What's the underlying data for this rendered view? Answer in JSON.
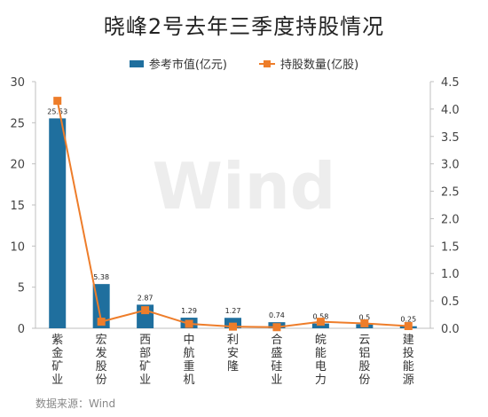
{
  "title": "晓峰2号去年三季度持股情况",
  "watermark": "Wind",
  "source": "数据来源：Wind",
  "colors": {
    "bar": "#1f6f9e",
    "line": "#ee7d2a",
    "axis": "#bfbfbf",
    "text": "#333333"
  },
  "chart_data": {
    "type": "bar",
    "categories": [
      "紫金矿业",
      "宏发股份",
      "西部矿业",
      "中航重机",
      "利安隆",
      "合盛硅业",
      "皖能电力",
      "云铝股份",
      "建投能源"
    ],
    "series": [
      {
        "name": "参考市值(亿元)",
        "type": "bar",
        "axis": "left",
        "values": [
          25.53,
          5.38,
          2.87,
          1.29,
          1.27,
          0.74,
          0.58,
          0.5,
          0.25
        ],
        "labels": [
          "25.53",
          "5.38",
          "2.87",
          "1.29",
          "1.27",
          "0.74",
          "0.58",
          "0.5",
          "0.25"
        ]
      },
      {
        "name": "持股数量(亿股)",
        "type": "line",
        "axis": "right",
        "values": [
          4.15,
          0.12,
          0.33,
          0.08,
          0.03,
          0.02,
          0.12,
          0.09,
          0.04
        ]
      }
    ],
    "y_left": {
      "min": 0,
      "max": 30,
      "ticks": [
        "0",
        "5",
        "10",
        "15",
        "20",
        "25",
        "30"
      ]
    },
    "y_right": {
      "min": 0,
      "max": 4.5,
      "ticks": [
        "0.0",
        "0.5",
        "1.0",
        "1.5",
        "2.0",
        "2.5",
        "3.0",
        "3.5",
        "4.0",
        "4.5"
      ]
    },
    "grid": false,
    "legend": "top-center"
  }
}
